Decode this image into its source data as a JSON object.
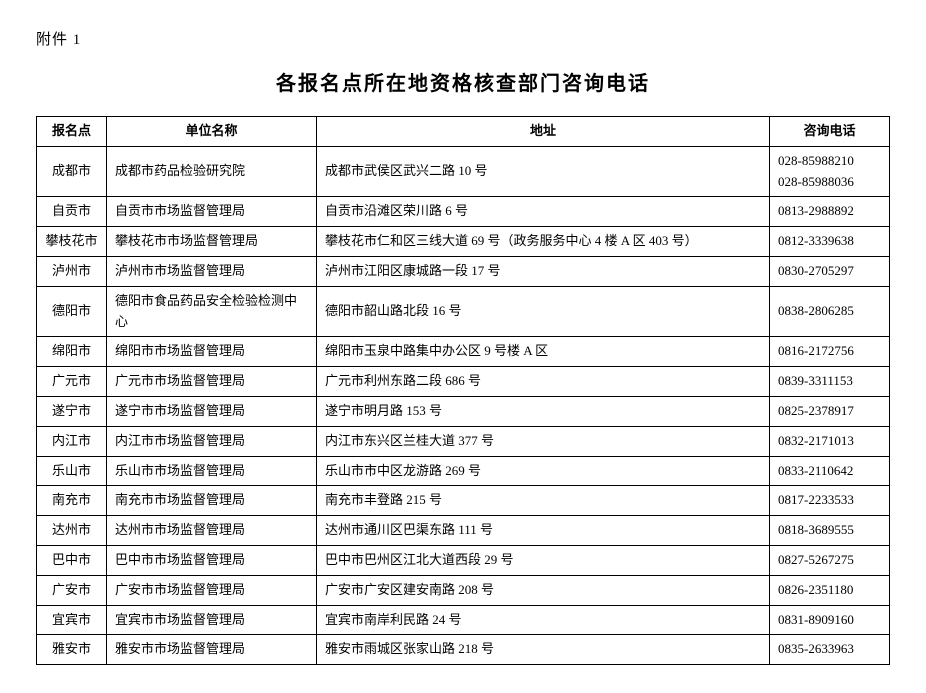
{
  "attachment_label": "附件 1",
  "title": "各报名点所在地资格核查部门咨询电话",
  "table": {
    "columns": [
      {
        "key": "point",
        "label": "报名点"
      },
      {
        "key": "org",
        "label": "单位名称"
      },
      {
        "key": "addr",
        "label": "地址"
      },
      {
        "key": "phone",
        "label": "咨询电话"
      }
    ],
    "rows": [
      {
        "point": "成都市",
        "org": "成都市药品检验研究院",
        "addr": "成都市武侯区武兴二路 10 号",
        "phone": "028-85988210\n028-85988036"
      },
      {
        "point": "自贡市",
        "org": "自贡市市场监督管理局",
        "addr": "自贡市沿滩区荣川路 6 号",
        "phone": "0813-2988892"
      },
      {
        "point": "攀枝花市",
        "org": "攀枝花市市场监督管理局",
        "addr": "攀枝花市仁和区三线大道 69 号（政务服务中心 4 楼 A 区 403 号）",
        "phone": "0812-3339638"
      },
      {
        "point": "泸州市",
        "org": "泸州市市场监督管理局",
        "addr": "泸州市江阳区康城路一段 17 号",
        "phone": "0830-2705297"
      },
      {
        "point": "德阳市",
        "org": "德阳市食品药品安全检验检测中心",
        "addr": "德阳市韶山路北段 16 号",
        "phone": "0838-2806285"
      },
      {
        "point": "绵阳市",
        "org": "绵阳市市场监督管理局",
        "addr": "绵阳市玉泉中路集中办公区 9 号楼 A 区",
        "phone": "0816-2172756"
      },
      {
        "point": "广元市",
        "org": "广元市市场监督管理局",
        "addr": "广元市利州东路二段 686 号",
        "phone": "0839-3311153"
      },
      {
        "point": "遂宁市",
        "org": "遂宁市市场监督管理局",
        "addr": "遂宁市明月路 153 号",
        "phone": "0825-2378917"
      },
      {
        "point": "内江市",
        "org": "内江市市场监督管理局",
        "addr": "内江市东兴区兰桂大道 377 号",
        "phone": "0832-2171013"
      },
      {
        "point": "乐山市",
        "org": "乐山市市场监督管理局",
        "addr": "乐山市市中区龙游路 269 号",
        "phone": "0833-2110642"
      },
      {
        "point": "南充市",
        "org": "南充市市场监督管理局",
        "addr": "南充市丰登路 215 号",
        "phone": "0817-2233533"
      },
      {
        "point": "达州市",
        "org": "达州市市场监督管理局",
        "addr": "达州市通川区巴渠东路 111 号",
        "phone": "0818-3689555"
      },
      {
        "point": "巴中市",
        "org": "巴中市市场监督管理局",
        "addr": "巴中市巴州区江北大道西段 29 号",
        "phone": "0827-5267275"
      },
      {
        "point": "广安市",
        "org": "广安市市场监督管理局",
        "addr": "广安市广安区建安南路 208 号",
        "phone": "0826-2351180"
      },
      {
        "point": "宜宾市",
        "org": "宜宾市市场监督管理局",
        "addr": "宜宾市南岸利民路 24 号",
        "phone": "0831-8909160"
      },
      {
        "point": "雅安市",
        "org": "雅安市市场监督管理局",
        "addr": "雅安市雨城区张家山路 218 号",
        "phone": "0835-2633963"
      }
    ]
  }
}
